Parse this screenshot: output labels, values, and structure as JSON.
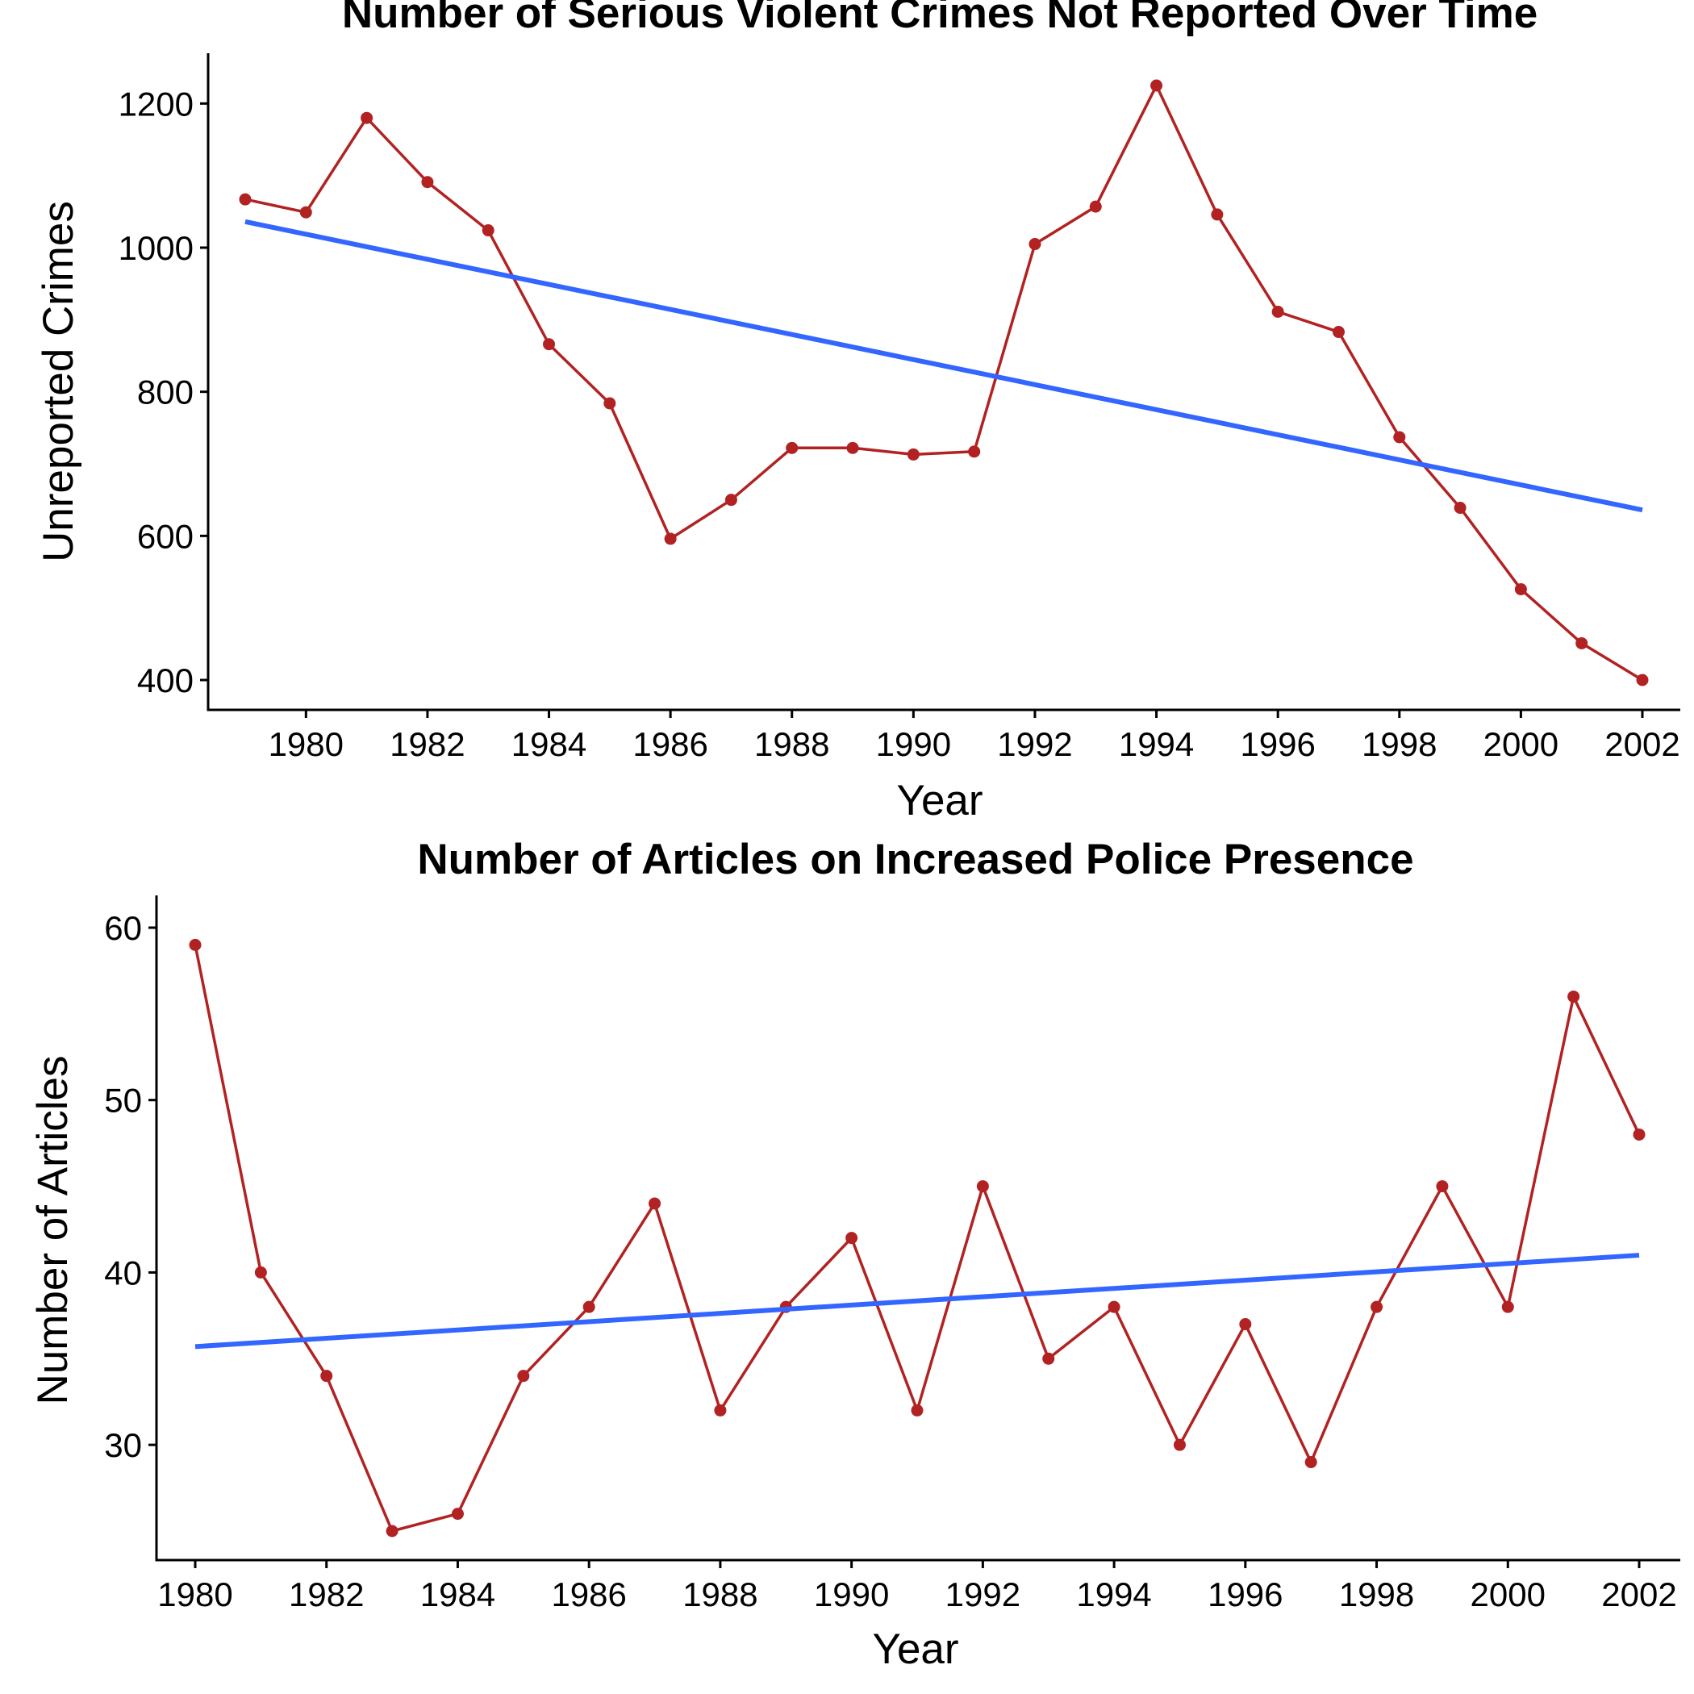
{
  "colors": {
    "series": "#B22222",
    "trend": "#3366FF",
    "axis": "#000000",
    "background": "#FFFFFF"
  },
  "chart_data": [
    {
      "type": "line",
      "title": "Number of Serious Violent Crimes Not Reported Over Time",
      "xlabel": "Year",
      "ylabel": "Unreported Crimes",
      "xlim": [
        1979,
        2002
      ],
      "ylim": [
        400,
        1225
      ],
      "xticks": [
        1980,
        1982,
        1984,
        1986,
        1988,
        1990,
        1992,
        1994,
        1996,
        1998,
        2000,
        2002
      ],
      "yticks": [
        400,
        600,
        800,
        1000,
        1200
      ],
      "grid": false,
      "series": [
        {
          "x": [
            1979,
            1980,
            1981,
            1982,
            1983,
            1984,
            1985,
            1986,
            1987,
            1988,
            1989,
            1990,
            1991,
            1992,
            1993,
            1994,
            1995,
            1996,
            1997,
            1998,
            1999,
            2000,
            2001,
            2002
          ],
          "values": [
            1067,
            1049,
            1180,
            1091,
            1024,
            866,
            784,
            596,
            650,
            722,
            722,
            713,
            717,
            1005,
            1057,
            1225,
            1046,
            911,
            883,
            737,
            639,
            526,
            451,
            400
          ]
        }
      ],
      "trend": {
        "x": [
          1979,
          2002
        ],
        "values": [
          1036,
          636
        ]
      }
    },
    {
      "type": "line",
      "title": "Number of Articles on Increased Police Presence",
      "xlabel": "Year",
      "ylabel": "Number of Articles",
      "xlim": [
        1980,
        2002
      ],
      "ylim": [
        25,
        60
      ],
      "xticks": [
        1980,
        1982,
        1984,
        1986,
        1988,
        1990,
        1992,
        1994,
        1996,
        1998,
        2000,
        2002
      ],
      "yticks": [
        30,
        40,
        50,
        60
      ],
      "grid": false,
      "series": [
        {
          "x": [
            1980,
            1981,
            1982,
            1983,
            1984,
            1985,
            1986,
            1987,
            1988,
            1989,
            1990,
            1991,
            1992,
            1993,
            1994,
            1995,
            1996,
            1997,
            1998,
            1999,
            2000,
            2001,
            2002
          ],
          "values": [
            59,
            40,
            34,
            25,
            26,
            34,
            38,
            44,
            32,
            38,
            42,
            32,
            45,
            35,
            38,
            30,
            37,
            29,
            38,
            45,
            38,
            56,
            48
          ]
        }
      ],
      "trend": {
        "x": [
          1980,
          2002
        ],
        "values": [
          35.7,
          41.0
        ]
      }
    }
  ]
}
